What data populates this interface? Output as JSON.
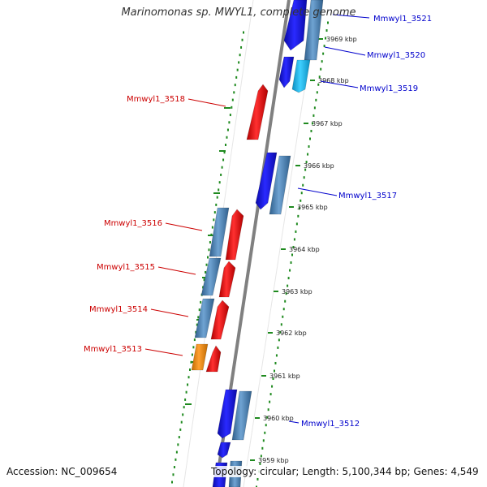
{
  "title": "Marinomonas sp. MWYL1, complete genome",
  "footer": {
    "accession_label": "Accession:",
    "accession": "NC_009654",
    "topology_label": "Topology:",
    "topology": "circular",
    "length_label": "Length:",
    "length": "5,100,344 bp",
    "genes_label": "Genes:",
    "genes": "4,549"
  },
  "colors": {
    "backbone": "#808080",
    "tick_green": "#1f8a1f",
    "gene_blue": "#1010e0",
    "gene_steel": "#4a7fb0",
    "gene_red": "#ee1111",
    "gene_cyan": "#11b8ee",
    "gene_orange": "#f08a10",
    "label_blue": "#0000cc",
    "label_red": "#cc0000"
  },
  "kbp_ticks": [
    "3969 kbp",
    "3968 kbp",
    "3967 kbp",
    "3966 kbp",
    "3965 kbp",
    "3964 kbp",
    "3963 kbp",
    "3962 kbp",
    "3961 kbp",
    "3960 kbp",
    "3959 kbp"
  ],
  "gene_labels": [
    {
      "name": "Mmwyl1_3521",
      "strand": "plus"
    },
    {
      "name": "Mmwyl1_3520",
      "strand": "plus"
    },
    {
      "name": "Mmwyl1_3519",
      "strand": "plus"
    },
    {
      "name": "Mmwyl1_3518",
      "strand": "minus"
    },
    {
      "name": "Mmwyl1_3517",
      "strand": "plus"
    },
    {
      "name": "Mmwyl1_3516",
      "strand": "minus"
    },
    {
      "name": "Mmwyl1_3515",
      "strand": "minus"
    },
    {
      "name": "Mmwyl1_3514",
      "strand": "minus"
    },
    {
      "name": "Mmwyl1_3513",
      "strand": "minus"
    },
    {
      "name": "Mmwyl1_3512",
      "strand": "plus"
    }
  ]
}
